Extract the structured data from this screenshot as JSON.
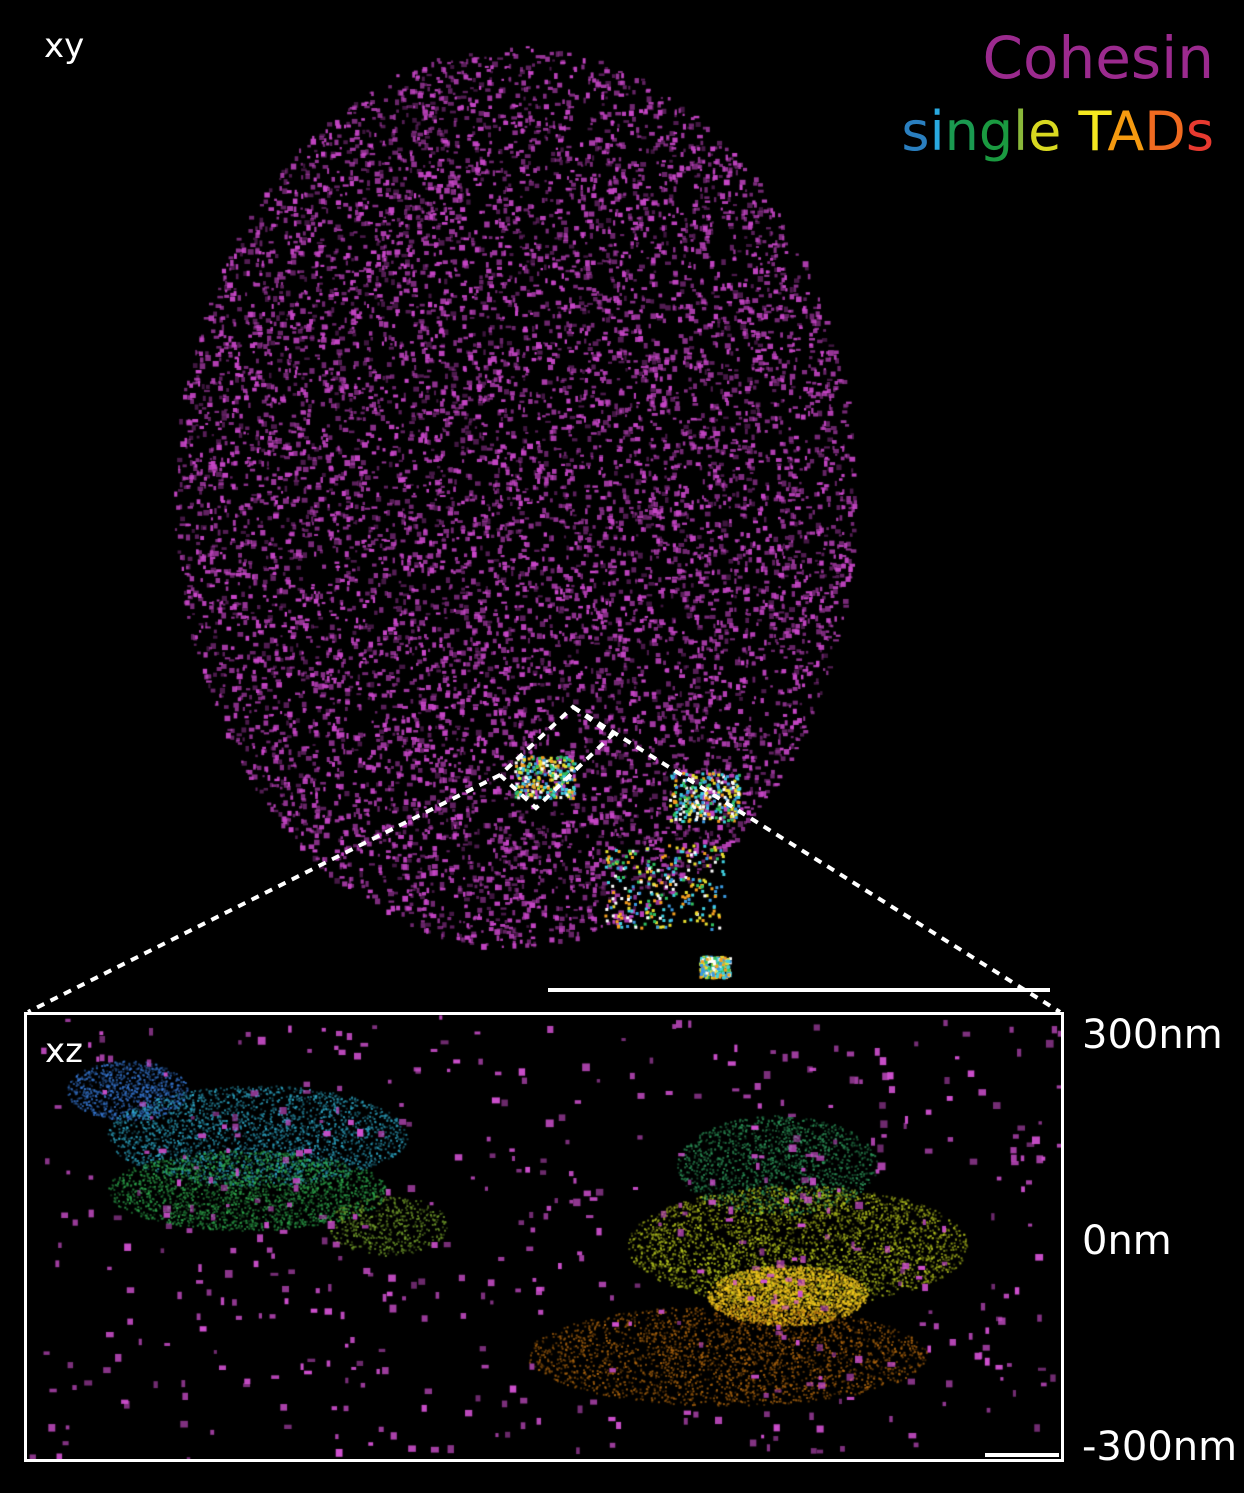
{
  "panels": {
    "xy": {
      "label": "xy"
    },
    "xz": {
      "label": "xz"
    }
  },
  "legend": {
    "cohesin": {
      "text": "Cohesin",
      "color": "#9b2a8e"
    },
    "single_tads": {
      "letters": [
        {
          "ch": "s",
          "color": "#2a7fc0"
        },
        {
          "ch": "i",
          "color": "#29a9e0"
        },
        {
          "ch": "n",
          "color": "#1a9a50"
        },
        {
          "ch": "g",
          "color": "#1a9a40"
        },
        {
          "ch": "l",
          "color": "#8ab83a"
        },
        {
          "ch": "e",
          "color": "#d8d820"
        },
        {
          "ch": " ",
          "color": "#000000"
        },
        {
          "ch": "T",
          "color": "#f5e820"
        },
        {
          "ch": "A",
          "color": "#f59a10"
        },
        {
          "ch": "D",
          "color": "#f06a20"
        },
        {
          "ch": "s",
          "color": "#e83a30"
        }
      ]
    }
  },
  "z_axis": {
    "top": "300nm",
    "middle": "0nm",
    "bottom": "-300nm"
  },
  "colors": {
    "cohesin": "#c040c0",
    "background": "#000000"
  }
}
